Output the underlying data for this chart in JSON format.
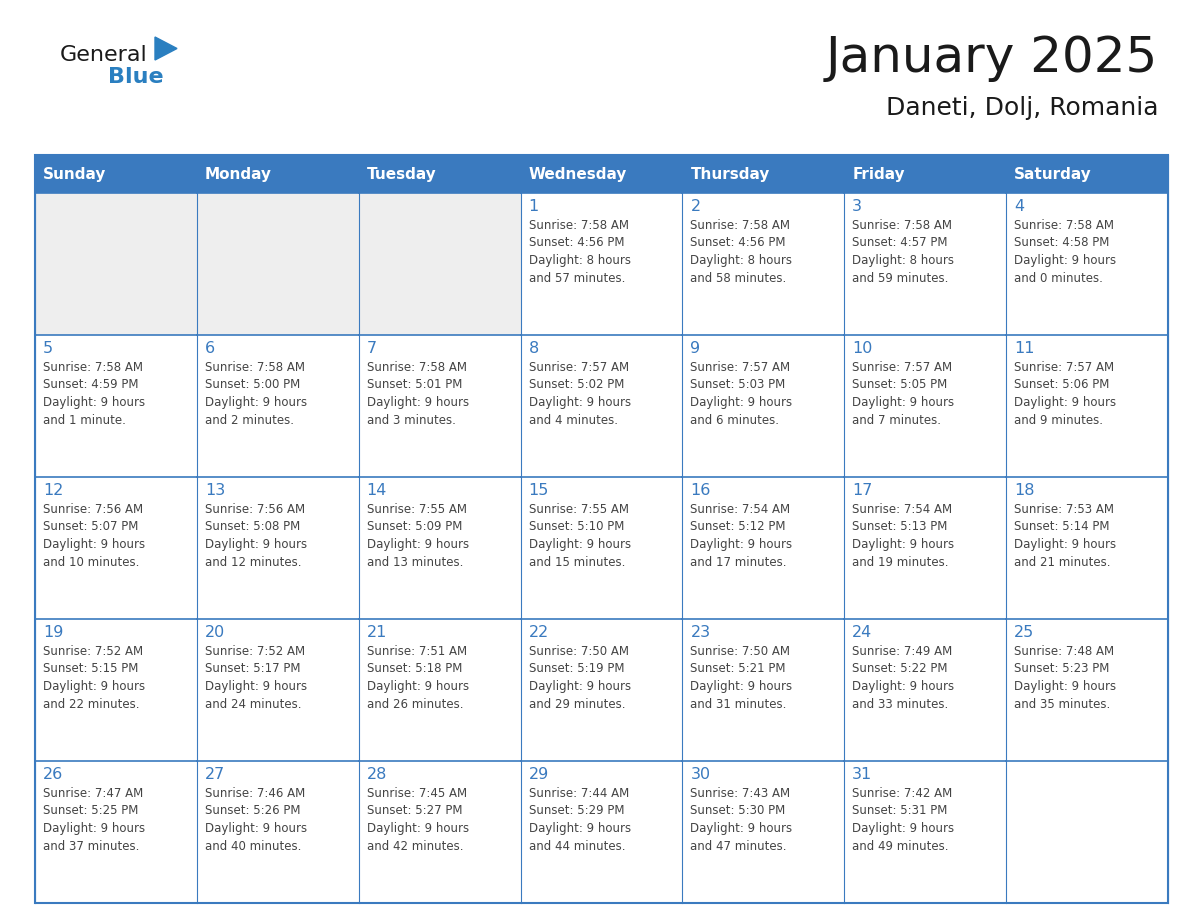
{
  "title": "January 2025",
  "subtitle": "Daneti, Dolj, Romania",
  "header_bg_color": "#3a7abf",
  "header_text_color": "#ffffff",
  "cell_bg_white": "#ffffff",
  "cell_bg_gray": "#eeeeee",
  "border_color": "#3a7abf",
  "text_color": "#444444",
  "day_number_color": "#3a7abf",
  "logo_general_color": "#1a1a1a",
  "logo_blue_color": "#2a7fc0",
  "logo_triangle_color": "#2a7fc0",
  "weekdays": [
    "Sunday",
    "Monday",
    "Tuesday",
    "Wednesday",
    "Thursday",
    "Friday",
    "Saturday"
  ],
  "weeks": [
    [
      {
        "day": "",
        "info": ""
      },
      {
        "day": "",
        "info": ""
      },
      {
        "day": "",
        "info": ""
      },
      {
        "day": "1",
        "info": "Sunrise: 7:58 AM\nSunset: 4:56 PM\nDaylight: 8 hours\nand 57 minutes."
      },
      {
        "day": "2",
        "info": "Sunrise: 7:58 AM\nSunset: 4:56 PM\nDaylight: 8 hours\nand 58 minutes."
      },
      {
        "day": "3",
        "info": "Sunrise: 7:58 AM\nSunset: 4:57 PM\nDaylight: 8 hours\nand 59 minutes."
      },
      {
        "day": "4",
        "info": "Sunrise: 7:58 AM\nSunset: 4:58 PM\nDaylight: 9 hours\nand 0 minutes."
      }
    ],
    [
      {
        "day": "5",
        "info": "Sunrise: 7:58 AM\nSunset: 4:59 PM\nDaylight: 9 hours\nand 1 minute."
      },
      {
        "day": "6",
        "info": "Sunrise: 7:58 AM\nSunset: 5:00 PM\nDaylight: 9 hours\nand 2 minutes."
      },
      {
        "day": "7",
        "info": "Sunrise: 7:58 AM\nSunset: 5:01 PM\nDaylight: 9 hours\nand 3 minutes."
      },
      {
        "day": "8",
        "info": "Sunrise: 7:57 AM\nSunset: 5:02 PM\nDaylight: 9 hours\nand 4 minutes."
      },
      {
        "day": "9",
        "info": "Sunrise: 7:57 AM\nSunset: 5:03 PM\nDaylight: 9 hours\nand 6 minutes."
      },
      {
        "day": "10",
        "info": "Sunrise: 7:57 AM\nSunset: 5:05 PM\nDaylight: 9 hours\nand 7 minutes."
      },
      {
        "day": "11",
        "info": "Sunrise: 7:57 AM\nSunset: 5:06 PM\nDaylight: 9 hours\nand 9 minutes."
      }
    ],
    [
      {
        "day": "12",
        "info": "Sunrise: 7:56 AM\nSunset: 5:07 PM\nDaylight: 9 hours\nand 10 minutes."
      },
      {
        "day": "13",
        "info": "Sunrise: 7:56 AM\nSunset: 5:08 PM\nDaylight: 9 hours\nand 12 minutes."
      },
      {
        "day": "14",
        "info": "Sunrise: 7:55 AM\nSunset: 5:09 PM\nDaylight: 9 hours\nand 13 minutes."
      },
      {
        "day": "15",
        "info": "Sunrise: 7:55 AM\nSunset: 5:10 PM\nDaylight: 9 hours\nand 15 minutes."
      },
      {
        "day": "16",
        "info": "Sunrise: 7:54 AM\nSunset: 5:12 PM\nDaylight: 9 hours\nand 17 minutes."
      },
      {
        "day": "17",
        "info": "Sunrise: 7:54 AM\nSunset: 5:13 PM\nDaylight: 9 hours\nand 19 minutes."
      },
      {
        "day": "18",
        "info": "Sunrise: 7:53 AM\nSunset: 5:14 PM\nDaylight: 9 hours\nand 21 minutes."
      }
    ],
    [
      {
        "day": "19",
        "info": "Sunrise: 7:52 AM\nSunset: 5:15 PM\nDaylight: 9 hours\nand 22 minutes."
      },
      {
        "day": "20",
        "info": "Sunrise: 7:52 AM\nSunset: 5:17 PM\nDaylight: 9 hours\nand 24 minutes."
      },
      {
        "day": "21",
        "info": "Sunrise: 7:51 AM\nSunset: 5:18 PM\nDaylight: 9 hours\nand 26 minutes."
      },
      {
        "day": "22",
        "info": "Sunrise: 7:50 AM\nSunset: 5:19 PM\nDaylight: 9 hours\nand 29 minutes."
      },
      {
        "day": "23",
        "info": "Sunrise: 7:50 AM\nSunset: 5:21 PM\nDaylight: 9 hours\nand 31 minutes."
      },
      {
        "day": "24",
        "info": "Sunrise: 7:49 AM\nSunset: 5:22 PM\nDaylight: 9 hours\nand 33 minutes."
      },
      {
        "day": "25",
        "info": "Sunrise: 7:48 AM\nSunset: 5:23 PM\nDaylight: 9 hours\nand 35 minutes."
      }
    ],
    [
      {
        "day": "26",
        "info": "Sunrise: 7:47 AM\nSunset: 5:25 PM\nDaylight: 9 hours\nand 37 minutes."
      },
      {
        "day": "27",
        "info": "Sunrise: 7:46 AM\nSunset: 5:26 PM\nDaylight: 9 hours\nand 40 minutes."
      },
      {
        "day": "28",
        "info": "Sunrise: 7:45 AM\nSunset: 5:27 PM\nDaylight: 9 hours\nand 42 minutes."
      },
      {
        "day": "29",
        "info": "Sunrise: 7:44 AM\nSunset: 5:29 PM\nDaylight: 9 hours\nand 44 minutes."
      },
      {
        "day": "30",
        "info": "Sunrise: 7:43 AM\nSunset: 5:30 PM\nDaylight: 9 hours\nand 47 minutes."
      },
      {
        "day": "31",
        "info": "Sunrise: 7:42 AM\nSunset: 5:31 PM\nDaylight: 9 hours\nand 49 minutes."
      },
      {
        "day": "",
        "info": ""
      }
    ]
  ]
}
